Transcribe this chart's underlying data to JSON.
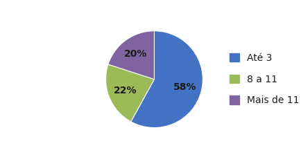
{
  "labels": [
    "Até 3",
    "8 a 11",
    "Mais de 11"
  ],
  "values": [
    58,
    22,
    20
  ],
  "colors": [
    "#4472C4",
    "#9BBB59",
    "#8064A2"
  ],
  "legend_labels": [
    "Até 3",
    "8 a 11",
    "Mais de 11"
  ],
  "startangle": 90,
  "figsize": [
    4.34,
    2.27
  ],
  "dpi": 100,
  "text_color": "#1a1a1a",
  "font_size": 10
}
